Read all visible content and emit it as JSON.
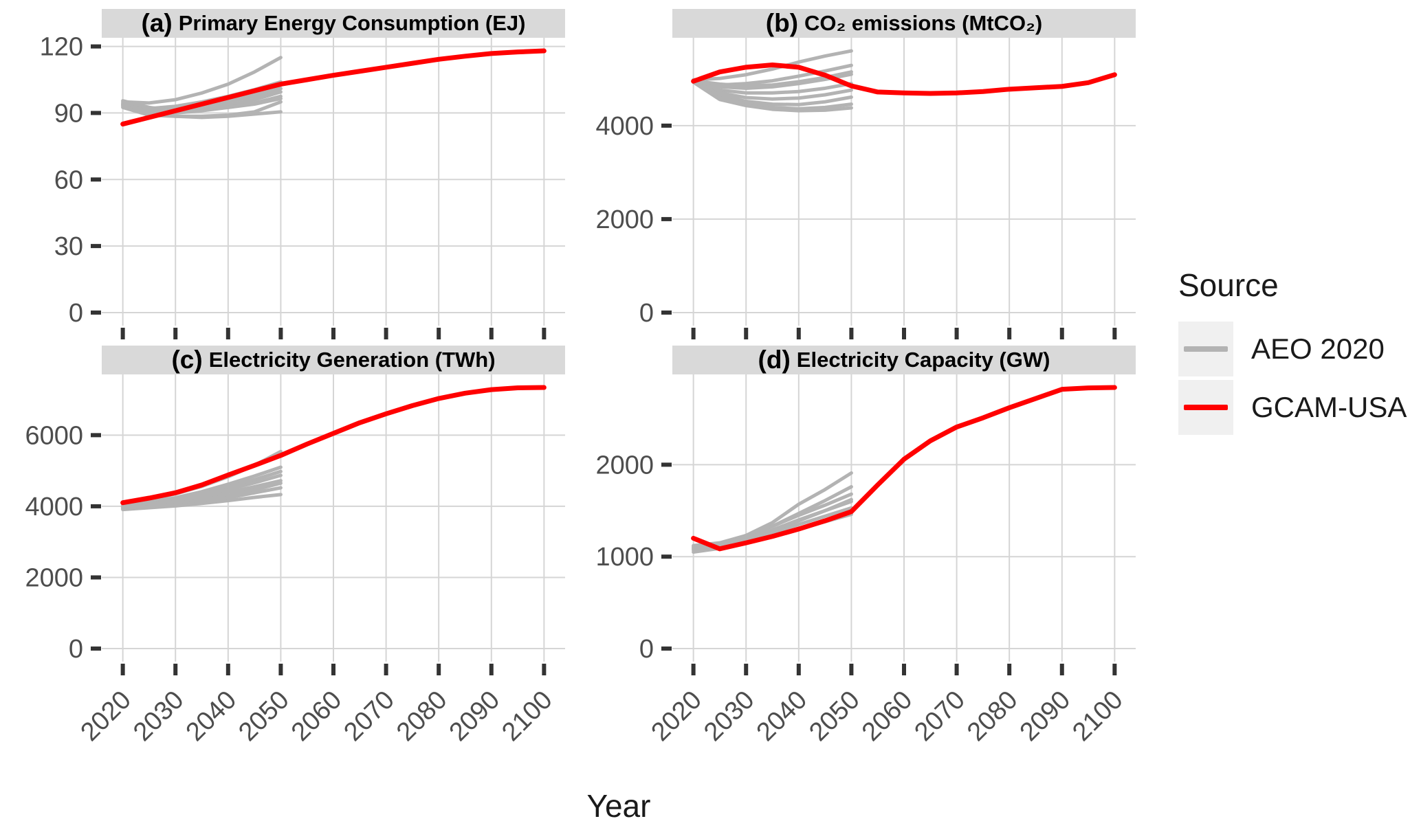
{
  "figure": {
    "xlabel": "Year"
  },
  "legend": {
    "title": "Source",
    "items": [
      {
        "label": "AEO 2020",
        "color": "#b3b3b3"
      },
      {
        "label": "GCAM-USA",
        "color": "#ff0000"
      }
    ]
  },
  "style": {
    "grid_color": "#d5d5d5",
    "tick_color": "#333333",
    "axis_text_color": "#4d4d4d",
    "strip_bg": "#d9d9d9",
    "red_width": 7,
    "gray_width": 5
  },
  "chart_data": {
    "type": "line",
    "x": {
      "label": "Year",
      "ticks": [
        2020,
        2030,
        2040,
        2050,
        2060,
        2070,
        2080,
        2090,
        2100
      ],
      "domain": [
        2016,
        2104
      ]
    },
    "legend": {
      "title": "Source",
      "entries": [
        "AEO 2020",
        "GCAM-USA"
      ],
      "position": "right"
    },
    "gcam_years": [
      2020,
      2025,
      2030,
      2035,
      2040,
      2045,
      2050,
      2055,
      2060,
      2065,
      2070,
      2075,
      2080,
      2085,
      2090,
      2095,
      2100
    ],
    "aeo_years": [
      2020,
      2025,
      2030,
      2035,
      2040,
      2045,
      2050
    ],
    "facets": [
      {
        "id": "a",
        "title_prefix": "(a)",
        "title": "Primary Energy Consumption (EJ)",
        "yticks": [
          0,
          30,
          60,
          90,
          120
        ],
        "ydomain": [
          -5.9,
          123.9
        ],
        "gcam_usa": [
          85,
          88,
          91,
          94,
          97,
          100,
          103,
          105,
          107,
          108.8,
          110.6,
          112.4,
          114.2,
          115.6,
          116.8,
          117.5,
          118
        ],
        "aeo_2020": [
          [
            95,
            94.5,
            96,
            99,
            103,
            108.5,
            115
          ],
          [
            94,
            92,
            93,
            95,
            97.5,
            100.5,
            104
          ],
          [
            94.5,
            91.5,
            92,
            93.5,
            95.5,
            98.5,
            102.5
          ],
          [
            93.5,
            91,
            91.5,
            93,
            95,
            97.5,
            101
          ],
          [
            94,
            90.5,
            90.5,
            91.5,
            93.5,
            96,
            99.5
          ],
          [
            93,
            90,
            90,
            91,
            92.5,
            94.5,
            97.5
          ],
          [
            95.5,
            92.5,
            91,
            91.5,
            92.5,
            94,
            96.5
          ],
          [
            93.5,
            89.5,
            88.5,
            88.5,
            89,
            90.5,
            95
          ],
          [
            92.5,
            89,
            88.5,
            88,
            88.5,
            89.5,
            90.5
          ]
        ]
      },
      {
        "id": "b",
        "title_prefix": "(b)",
        "title": "CO₂ emissions (MtCO₂)",
        "yticks": [
          0,
          2000,
          4000
        ],
        "ydomain": [
          -280,
          5880
        ],
        "gcam_usa": [
          4950,
          5150,
          5250,
          5300,
          5250,
          5080,
          4850,
          4720,
          4700,
          4690,
          4700,
          4730,
          4780,
          4810,
          4840,
          4920,
          5090
        ],
        "aeo_2020": [
          [
            4980,
            5010,
            5090,
            5210,
            5360,
            5490,
            5600
          ],
          [
            4950,
            4870,
            4900,
            4960,
            5060,
            5170,
            5290
          ],
          [
            4960,
            4830,
            4800,
            4830,
            4900,
            4990,
            5100
          ],
          [
            4950,
            4760,
            4700,
            4700,
            4730,
            4800,
            4900
          ],
          [
            4940,
            4700,
            4600,
            4570,
            4590,
            4660,
            4760
          ],
          [
            4950,
            4650,
            4520,
            4460,
            4450,
            4510,
            4610
          ],
          [
            4940,
            4600,
            4460,
            4390,
            4360,
            4390,
            4460
          ],
          [
            4930,
            4560,
            4430,
            4350,
            4320,
            4330,
            4380
          ],
          [
            4960,
            4890,
            4850,
            4870,
            4940,
            5030,
            5150
          ]
        ]
      },
      {
        "id": "c",
        "title_prefix": "(c)",
        "title": "Electricity Generation (TWh)",
        "yticks": [
          0,
          2000,
          4000,
          6000
        ],
        "ydomain": [
          -367,
          7707
        ],
        "gcam_usa": [
          4100,
          4230,
          4380,
          4600,
          4880,
          5150,
          5430,
          5750,
          6050,
          6350,
          6600,
          6830,
          7030,
          7180,
          7280,
          7330,
          7340
        ],
        "aeo_2020": [
          [
            4060,
            4180,
            4350,
            4560,
            4830,
            5150,
            5540
          ],
          [
            4010,
            4110,
            4240,
            4410,
            4620,
            4850,
            5100
          ],
          [
            4020,
            4100,
            4210,
            4360,
            4540,
            4750,
            4980
          ],
          [
            3980,
            4060,
            4160,
            4300,
            4470,
            4660,
            4870
          ],
          [
            3950,
            4030,
            4120,
            4240,
            4390,
            4550,
            4720
          ],
          [
            3960,
            4010,
            4080,
            4180,
            4300,
            4460,
            4650
          ],
          [
            3930,
            3990,
            4050,
            4130,
            4240,
            4380,
            4520
          ],
          [
            3910,
            3960,
            4010,
            4080,
            4160,
            4250,
            4330
          ]
        ]
      },
      {
        "id": "d",
        "title_prefix": "(d)",
        "title": "Electricity Capacity (GW)",
        "yticks": [
          0,
          1000,
          2000
        ],
        "ydomain": [
          -142,
          2982
        ],
        "gcam_usa": [
          1200,
          1085,
          1150,
          1220,
          1300,
          1390,
          1490,
          1780,
          2060,
          2260,
          2410,
          2510,
          2620,
          2720,
          2820,
          2835,
          2840
        ],
        "aeo_2020": [
          [
            1080,
            1130,
            1230,
            1370,
            1570,
            1730,
            1910
          ],
          [
            1100,
            1140,
            1220,
            1330,
            1470,
            1610,
            1760
          ],
          [
            1120,
            1150,
            1230,
            1330,
            1450,
            1560,
            1680
          ],
          [
            1090,
            1120,
            1190,
            1280,
            1390,
            1500,
            1620
          ],
          [
            1110,
            1135,
            1200,
            1290,
            1400,
            1500,
            1600
          ],
          [
            1070,
            1100,
            1170,
            1260,
            1350,
            1440,
            1530
          ],
          [
            1050,
            1090,
            1150,
            1220,
            1300,
            1380,
            1460
          ]
        ]
      }
    ]
  }
}
